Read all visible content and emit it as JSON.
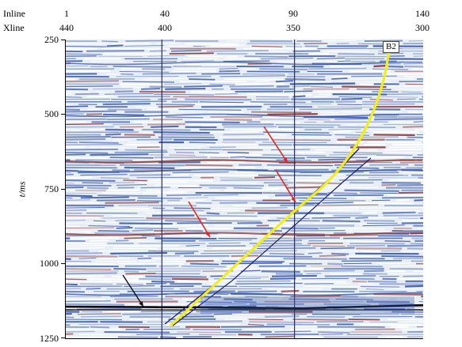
{
  "axes": {
    "inline_label": "Inline",
    "xline_label": "Xline",
    "time_label": "t/ms",
    "columns": [
      {
        "inline": "1",
        "xline": "440",
        "frac": 0.0
      },
      {
        "inline": "40",
        "xline": "400",
        "frac": 0.28
      },
      {
        "inline": "90",
        "xline": "350",
        "frac": 0.64
      },
      {
        "inline": "140",
        "xline": "300",
        "frac": 1.0
      }
    ],
    "time_ticks": [
      "250",
      "500",
      "750",
      "1000",
      "1250"
    ],
    "time_range": [
      250,
      1250
    ]
  },
  "well": {
    "name": "B2",
    "color": "#f2ee1a"
  },
  "colors": {
    "background": "#e8eef6",
    "trough": "#3a5aa8",
    "peak": "#8a3a3a",
    "arrow_red": "#e0261e",
    "arrow_black": "#111111",
    "gridline": "#2a2a6a"
  }
}
